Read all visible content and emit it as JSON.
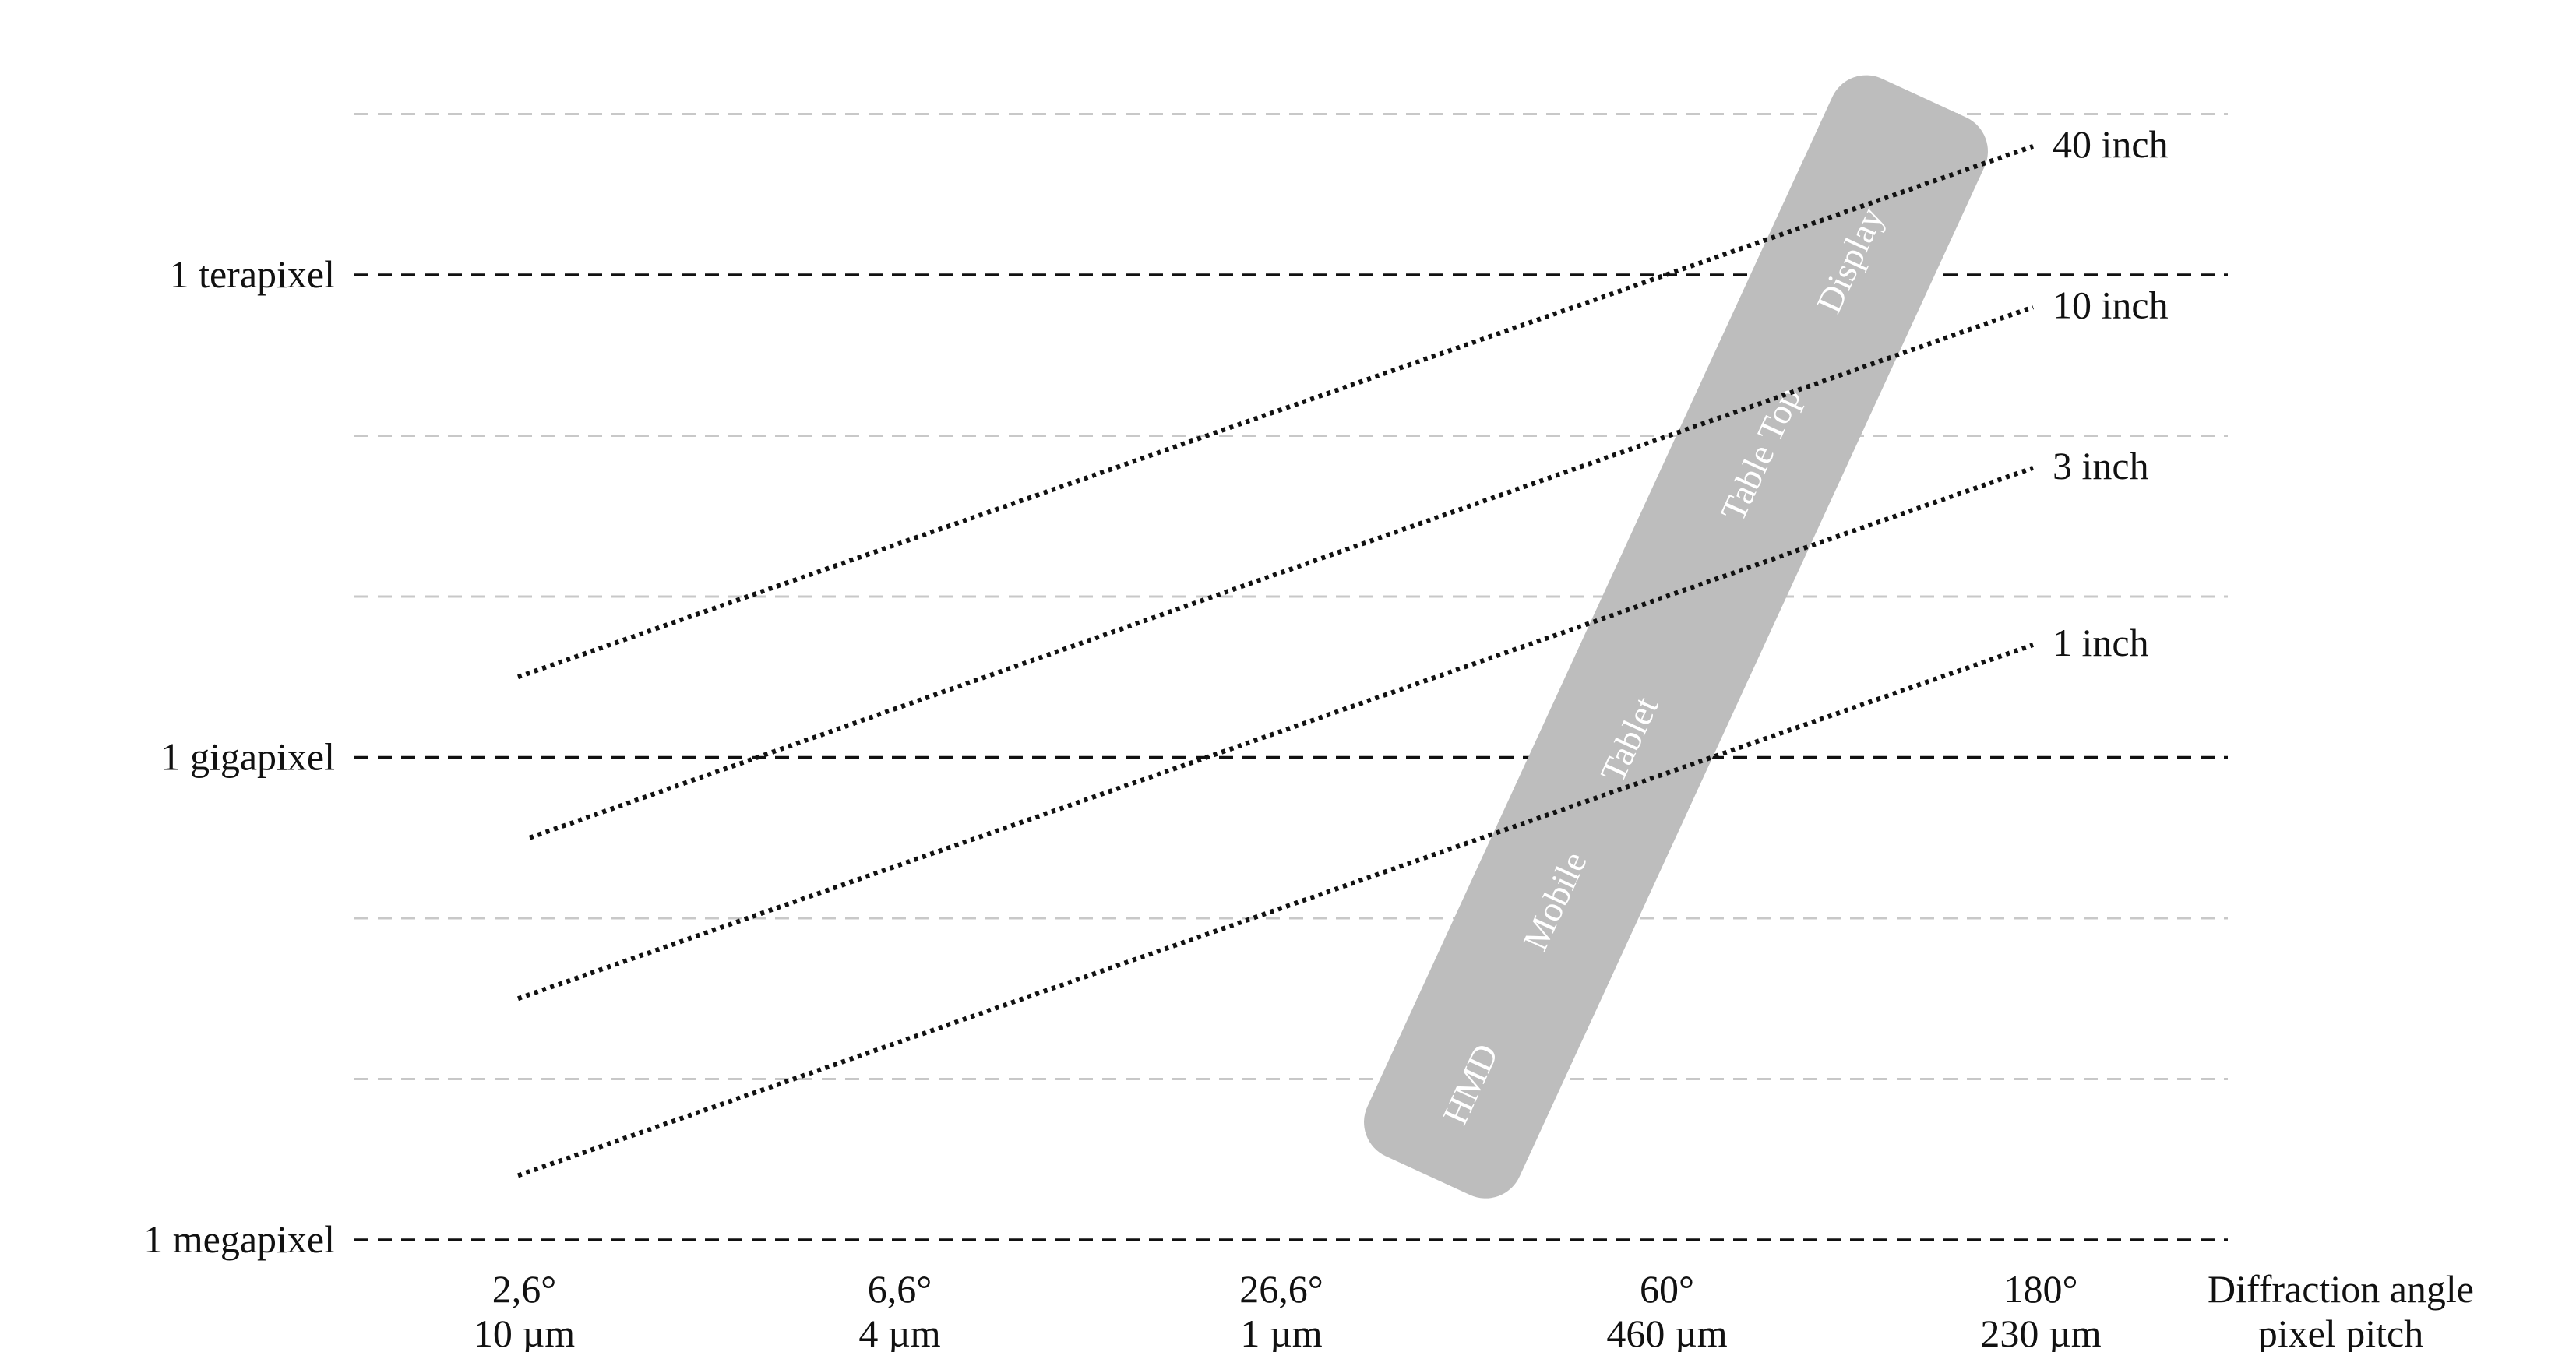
{
  "chart_data": {
    "type": "line",
    "title": "",
    "x_axis": {
      "title": [
        "Diffraction angle",
        "pixel pitch"
      ],
      "ticks": [
        {
          "angle": "2,6°",
          "pitch": "10 µm"
        },
        {
          "angle": "6,6°",
          "pitch": "4 µm"
        },
        {
          "angle": "26,6°",
          "pitch": "1 µm"
        },
        {
          "angle": "60°",
          "pitch": "460 µm"
        },
        {
          "angle": "180°",
          "pitch": "230 µm"
        }
      ]
    },
    "y_axis": {
      "scale": "log",
      "ticks": [
        {
          "label": "1 megapixel",
          "value": 0
        },
        {
          "label": "1 gigapixel",
          "value": 3
        },
        {
          "label": "1 terapixel",
          "value": 6
        }
      ],
      "minor_gridlines": [
        1,
        2,
        4,
        5,
        7
      ],
      "range": [
        0,
        7
      ]
    },
    "series": [
      {
        "name": "40 inch",
        "x": [
          0,
          4
        ],
        "y": [
          3.5,
          6.8
        ]
      },
      {
        "name": "10 inch",
        "x": [
          0,
          4
        ],
        "y": [
          2.5,
          5.8
        ]
      },
      {
        "name": "3 inch",
        "x": [
          0,
          4
        ],
        "y": [
          1.5,
          4.8
        ]
      },
      {
        "name": "1 inch",
        "x": [
          0,
          4
        ],
        "y": [
          0.4,
          3.7
        ]
      }
    ],
    "band": {
      "labels": [
        "HMD",
        "Mobile",
        "Tablet",
        "Table Top",
        "Display"
      ],
      "from": {
        "x": 2.3,
        "y": 0.4
      },
      "to": {
        "x": 9.4,
        "y": 7.1
      }
    },
    "colors": {
      "band": "#bdbdbd",
      "major_grid": "#111111",
      "minor_grid": "#c8c8c8",
      "series": "#111111"
    }
  }
}
